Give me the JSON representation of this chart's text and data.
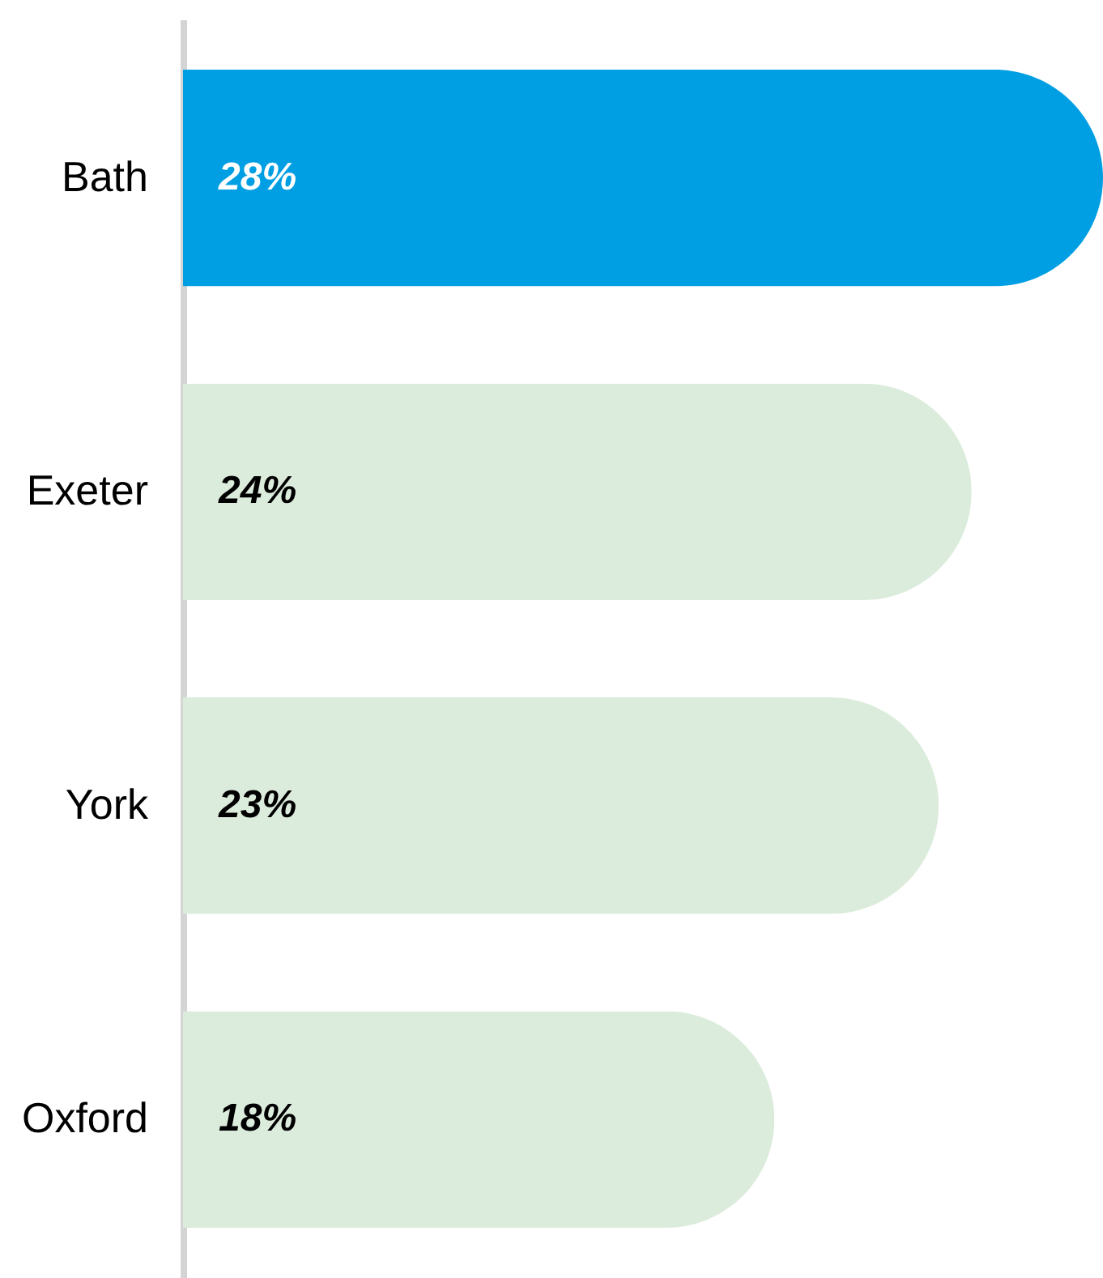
{
  "chart_data": {
    "type": "bar",
    "orientation": "horizontal",
    "categories": [
      "Bath",
      "Exeter",
      "York",
      "Oxford"
    ],
    "values": [
      28,
      24,
      23,
      18
    ],
    "value_labels": [
      "28%",
      "24%",
      "23%",
      "18%"
    ],
    "colors": [
      "#009fe3",
      "#dcecdc",
      "#dcecdc",
      "#dcecdc"
    ]
  }
}
